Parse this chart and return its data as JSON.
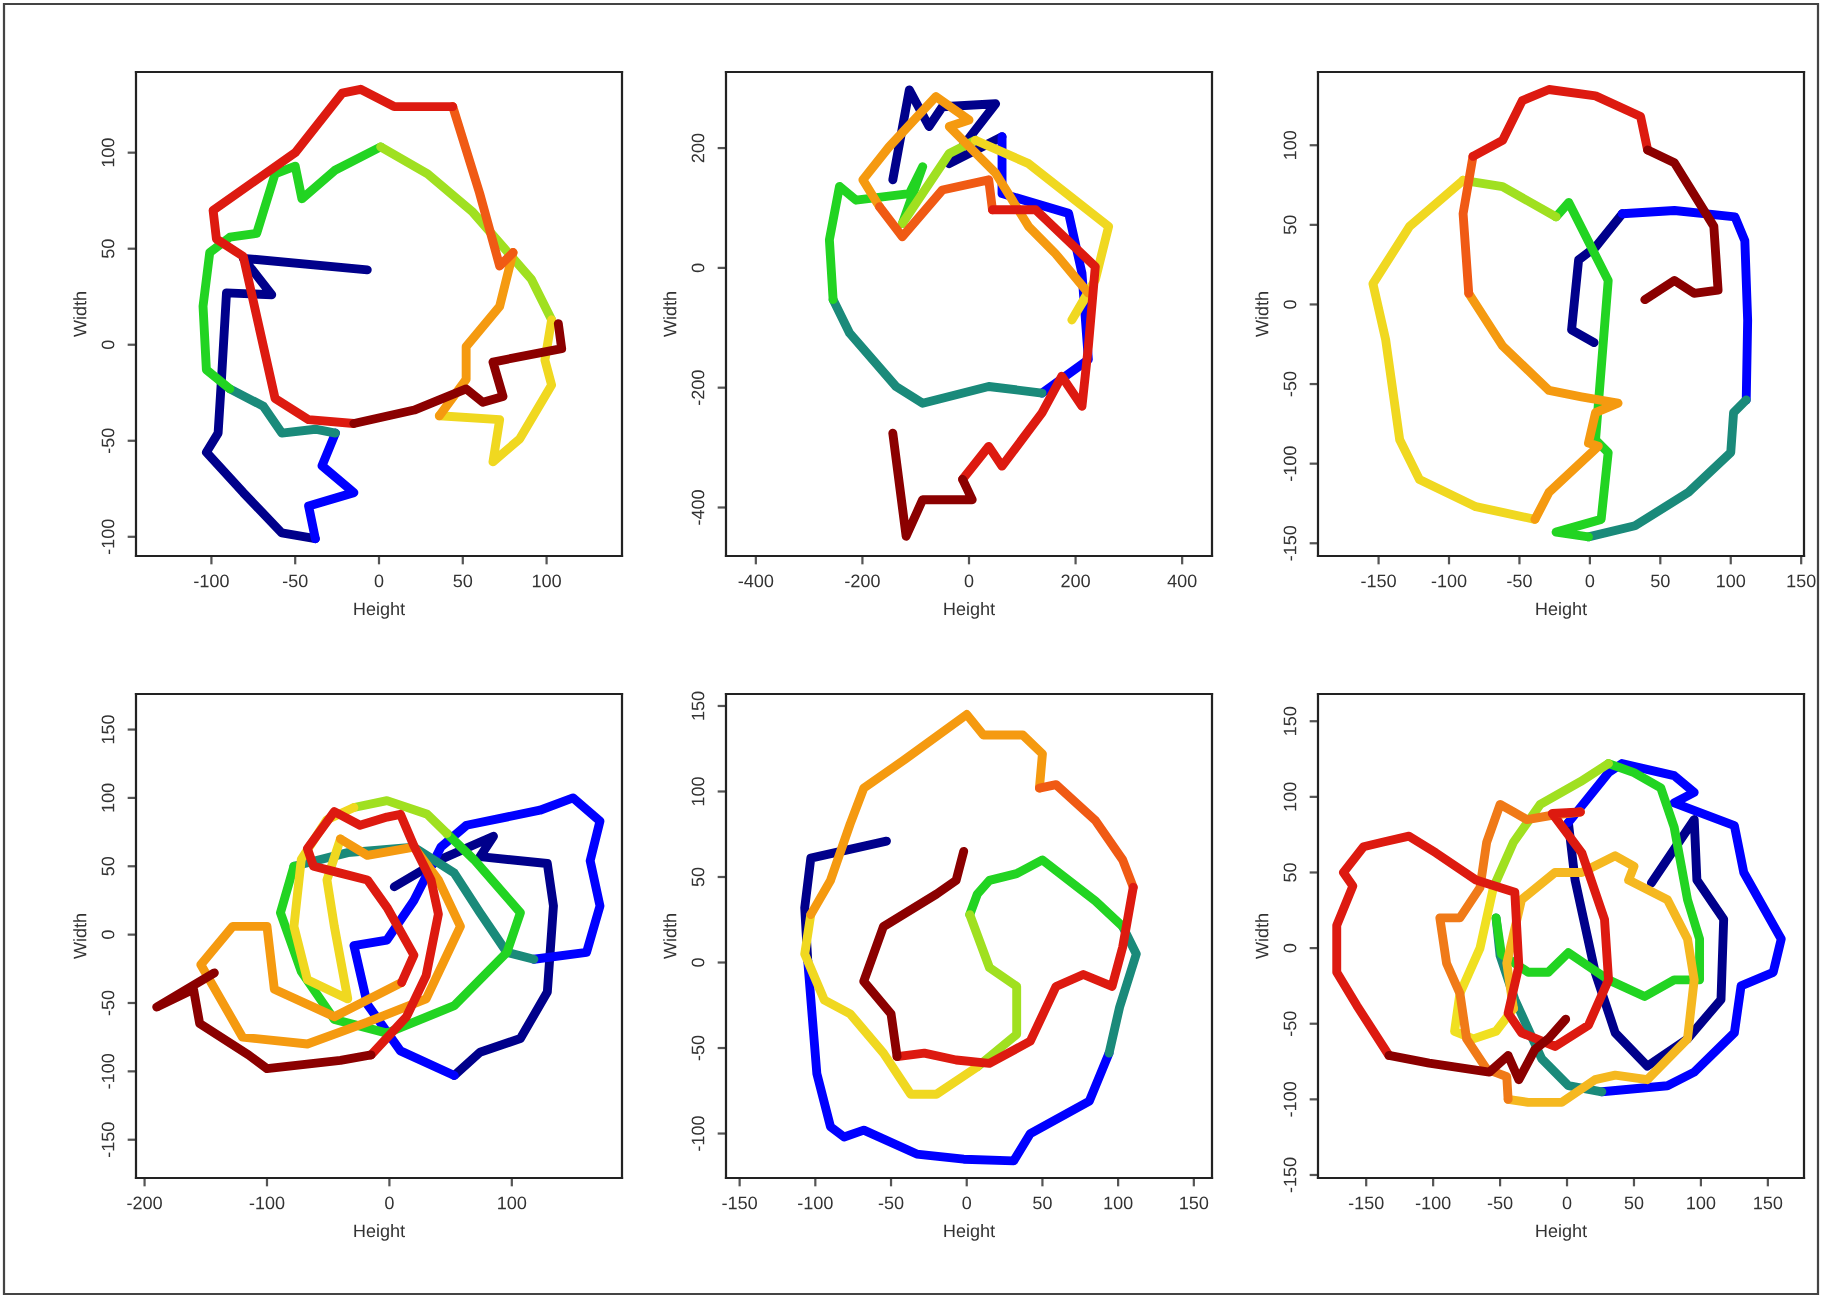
{
  "chart_data": [
    {
      "type": "line",
      "xlabel": "Height",
      "ylabel": "Width",
      "xlim": [
        -145,
        145
      ],
      "ylim": [
        -110,
        142
      ],
      "xticks": [
        -100,
        -50,
        0,
        50,
        100
      ],
      "yticks": [
        -100,
        -50,
        0,
        50,
        100
      ],
      "series": [
        {
          "color": "#00008b",
          "x": [
            -7,
            -81,
            -64,
            -91,
            -94,
            -96,
            -103,
            -81,
            -58,
            -38
          ],
          "values": [
            39,
            45,
            26,
            27,
            -18,
            -46,
            -56,
            -77,
            -98,
            -101
          ]
        },
        {
          "color": "#0000ff",
          "x": [
            -38,
            -42,
            -15,
            -34,
            -26
          ],
          "values": [
            -101,
            -84,
            -77,
            -63,
            -46
          ]
        },
        {
          "color": "#1a8a7a",
          "x": [
            -26,
            -38,
            -58,
            -69,
            -89
          ],
          "values": [
            -46,
            -44,
            -46,
            -32,
            -23
          ]
        },
        {
          "color": "#22d422",
          "x": [
            -89,
            -103,
            -105,
            -101,
            -89,
            -73,
            -62,
            -50,
            -46,
            -26,
            1
          ],
          "values": [
            -23,
            -13,
            20,
            48,
            56,
            58,
            89,
            93,
            76,
            91,
            103
          ]
        },
        {
          "color": "#a0e020",
          "x": [
            1,
            29,
            56,
            91,
            103
          ],
          "values": [
            103,
            89,
            69,
            34,
            13
          ]
        },
        {
          "color": "#f0d820",
          "x": [
            103,
            99,
            103,
            84,
            68,
            72,
            36
          ],
          "values": [
            13,
            -8,
            -21,
            -49,
            -61,
            -39,
            -37
          ]
        },
        {
          "color": "#f59a10",
          "x": [
            36,
            52,
            52,
            72,
            80
          ],
          "values": [
            -37,
            -18,
            -1,
            20,
            48
          ]
        },
        {
          "color": "#f05a14",
          "x": [
            80,
            72,
            60,
            44
          ],
          "values": [
            48,
            41,
            79,
            124
          ]
        },
        {
          "color": "#dd1a10",
          "x": [
            44,
            9,
            -11,
            -22,
            -50,
            -99,
            -97,
            -81,
            -62,
            -42,
            -15
          ],
          "values": [
            124,
            124,
            133,
            131,
            100,
            70,
            55,
            46,
            -28,
            -39,
            -41
          ]
        },
        {
          "color": "#8b0000",
          "x": [
            -15,
            21,
            52,
            62,
            74,
            68,
            109,
            107
          ],
          "values": [
            -41,
            -34,
            -23,
            -30,
            -27,
            -9,
            -2,
            11
          ]
        }
      ]
    },
    {
      "type": "line",
      "xlabel": "Height",
      "ylabel": "Width",
      "xlim": [
        -456,
        456
      ],
      "ylim": [
        -481,
        327
      ],
      "xticks": [
        -400,
        -200,
        0,
        200,
        400
      ],
      "yticks": [
        -400,
        -200,
        0,
        200
      ],
      "series": [
        {
          "color": "#00008b",
          "x": [
            -143,
            -112,
            -75,
            -50,
            50,
            -37,
            62
          ],
          "values": [
            147,
            297,
            236,
            269,
            274,
            174,
            219
          ]
        },
        {
          "color": "#0000ff",
          "x": [
            62,
            62,
            187,
            212,
            224,
            137
          ],
          "values": [
            219,
            124,
            91,
            -9,
            -153,
            -209
          ]
        },
        {
          "color": "#1a8a7a",
          "x": [
            137,
            37,
            -87,
            -137,
            -224,
            -255
          ],
          "values": [
            -209,
            -198,
            -226,
            -198,
            -109,
            -53
          ]
        },
        {
          "color": "#22d422",
          "x": [
            -255,
            -262,
            -243,
            -212,
            -112,
            -87,
            -125
          ],
          "values": [
            -53,
            47,
            136,
            113,
            124,
            169,
            74
          ]
        },
        {
          "color": "#a0e020",
          "x": [
            -125,
            -37,
            12
          ],
          "values": [
            74,
            191,
            213
          ]
        },
        {
          "color": "#f0d820",
          "x": [
            12,
            112,
            262,
            237,
            193,
            224
          ],
          "values": [
            213,
            174,
            69,
            -20,
            -87,
            -42
          ]
        },
        {
          "color": "#f59a10",
          "x": [
            224,
            162,
            112,
            50,
            -37,
            0,
            -62,
            -150,
            -199,
            -168
          ],
          "values": [
            -42,
            24,
            69,
            158,
            236,
            247,
            286,
            202,
            147,
            102
          ]
        },
        {
          "color": "#f05a14",
          "x": [
            -168,
            -125,
            -50,
            37,
            44
          ],
          "values": [
            102,
            52,
            130,
            147,
            97
          ]
        },
        {
          "color": "#dd1a10",
          "x": [
            44,
            125,
            237,
            224,
            212,
            174,
            137,
            62,
            37,
            -12
          ],
          "values": [
            97,
            97,
            2,
            -131,
            -231,
            -181,
            -242,
            -331,
            -298,
            -353
          ]
        },
        {
          "color": "#8b0000",
          "x": [
            -12,
            6,
            -87,
            -118,
            -143
          ],
          "values": [
            -353,
            -387,
            -387,
            -448,
            -276
          ]
        }
      ]
    },
    {
      "type": "line",
      "xlabel": "Height",
      "ylabel": "Width",
      "xlim": [
        -193,
        152
      ],
      "ylim": [
        -158,
        146
      ],
      "xticks": [
        -150,
        -100,
        -50,
        0,
        50,
        100,
        150
      ],
      "yticks": [
        -150,
        -100,
        -50,
        0,
        50,
        100
      ],
      "series": [
        {
          "color": "#00008b",
          "x": [
            3,
            -13,
            -8,
            4,
            23
          ],
          "values": [
            -24,
            -16,
            28,
            36,
            57
          ]
        },
        {
          "color": "#0000ff",
          "x": [
            23,
            60,
            103,
            110,
            112,
            111
          ],
          "values": [
            57,
            59,
            55,
            40,
            -10,
            -60
          ]
        },
        {
          "color": "#1a8a7a",
          "x": [
            111,
            102,
            100,
            70,
            32,
            -1
          ],
          "values": [
            -60,
            -68,
            -93,
            -118,
            -139,
            -146
          ]
        },
        {
          "color": "#22d422",
          "x": [
            -1,
            -24,
            8,
            13,
            4,
            13,
            -15,
            -24
          ],
          "values": [
            -146,
            -143,
            -135,
            -93,
            -85,
            15,
            64,
            55
          ]
        },
        {
          "color": "#a0e020",
          "x": [
            -24,
            -62,
            -90
          ],
          "values": [
            55,
            74,
            78
          ]
        },
        {
          "color": "#f0d820",
          "x": [
            -90,
            -128,
            -154,
            -145,
            -135,
            -121,
            -81,
            -39
          ],
          "values": [
            78,
            49,
            13,
            -22,
            -85,
            -110,
            -127,
            -135
          ]
        },
        {
          "color": "#f59a10",
          "x": [
            -39,
            -29,
            6,
            -1,
            4,
            20,
            -6,
            -29,
            -62,
            -86
          ],
          "values": [
            -135,
            -118,
            -89,
            -87,
            -68,
            -62,
            -58,
            -54,
            -26,
            7
          ]
        },
        {
          "color": "#f05a14",
          "x": [
            -86,
            -90,
            -83
          ],
          "values": [
            7,
            57,
            93
          ]
        },
        {
          "color": "#dd1a10",
          "x": [
            -83,
            -62,
            -48,
            -29,
            4,
            36,
            41
          ],
          "values": [
            93,
            103,
            128,
            135,
            131,
            118,
            97
          ]
        },
        {
          "color": "#8b0000",
          "x": [
            41,
            60,
            88,
            91,
            74,
            60,
            39
          ],
          "values": [
            97,
            89,
            49,
            9,
            7,
            15,
            3
          ]
        }
      ]
    },
    {
      "type": "line",
      "xlabel": "Height",
      "ylabel": "Width",
      "xlim": [
        -207,
        190
      ],
      "ylim": [
        -178,
        176
      ],
      "xticks": [
        -200,
        -100,
        0,
        100
      ],
      "yticks": [
        -150,
        -100,
        -50,
        0,
        50,
        100,
        150
      ],
      "series": [
        {
          "color": "#00008b",
          "x": [
            4,
            42,
            85,
            74,
            129,
            134,
            129,
            107,
            74,
            53
          ],
          "values": [
            35,
            55,
            72,
            57,
            52,
            21,
            -42,
            -76,
            -86,
            -103
          ]
        },
        {
          "color": "#0000ff",
          "x": [
            53,
            9,
            -18,
            -29,
            -2,
            20,
            42,
            63,
            123,
            150,
            172,
            164,
            172,
            161,
            118
          ],
          "values": [
            -103,
            -85,
            -51,
            -8,
            -4,
            25,
            64,
            80,
            91,
            100,
            83,
            54,
            21,
            -13,
            -18
          ]
        },
        {
          "color": "#1a8a7a",
          "x": [
            118,
            96,
            74,
            53,
            20,
            -34,
            -78
          ],
          "values": [
            -18,
            -13,
            16,
            45,
            64,
            60,
            50
          ]
        },
        {
          "color": "#22d422",
          "x": [
            -78,
            -89,
            -72,
            -45,
            -2,
            53,
            96,
            107,
            69,
            47
          ],
          "values": [
            50,
            16,
            -27,
            -62,
            -72,
            -52,
            -13,
            16,
            55,
            74
          ]
        },
        {
          "color": "#a0e020",
          "x": [
            47,
            31,
            -2,
            -29
          ],
          "values": [
            74,
            88,
            98,
            93
          ]
        },
        {
          "color": "#f0d820",
          "x": [
            -29,
            -51,
            -72,
            -78,
            -67,
            -34,
            -45,
            -51,
            -40
          ],
          "values": [
            93,
            84,
            55,
            6,
            -33,
            -47,
            6,
            40,
            70
          ]
        },
        {
          "color": "#f59a10",
          "x": [
            -40,
            -18,
            20,
            40,
            58,
            30,
            -18,
            -67,
            -120,
            -154,
            -128,
            -100,
            -94,
            -45,
            10
          ],
          "values": [
            70,
            58,
            64,
            40,
            6,
            -47,
            -64,
            -80,
            -75,
            -22,
            6,
            6,
            -40,
            -60,
            -35
          ]
        },
        {
          "color": "#dd1a10",
          "x": [
            10,
            20,
            -2,
            -18,
            -40,
            -62,
            -67,
            -45,
            -24,
            -2,
            9,
            20,
            34,
            40,
            30,
            14,
            -15
          ],
          "values": [
            -35,
            -15,
            20,
            40,
            45,
            50,
            63,
            90,
            80,
            86,
            88,
            65,
            40,
            15,
            -30,
            -60,
            -88
          ]
        },
        {
          "color": "#8b0000",
          "x": [
            -15,
            -40,
            -100,
            -115,
            -155,
            -160,
            -190,
            -143
          ],
          "values": [
            -88,
            -92,
            -98,
            -88,
            -65,
            -40,
            -53,
            -28
          ]
        }
      ]
    },
    {
      "type": "line",
      "xlabel": "Height",
      "ylabel": "Width",
      "xlim": [
        -159,
        162
      ],
      "ylim": [
        -126,
        157
      ],
      "xticks": [
        -150,
        -100,
        -50,
        0,
        50,
        100,
        150
      ],
      "yticks": [
        -100,
        -50,
        0,
        50,
        100,
        150
      ],
      "series": [
        {
          "color": "#00008b",
          "x": [
            -53,
            -103,
            -107,
            -105
          ],
          "values": [
            71,
            61,
            32,
            1
          ]
        },
        {
          "color": "#0000ff",
          "x": [
            -105,
            -99,
            -90,
            -81,
            -68,
            -33,
            -2,
            31,
            42,
            81,
            94
          ],
          "values": [
            1,
            -65,
            -96,
            -102,
            -98,
            -112,
            -115,
            -116,
            -100,
            -81,
            -53
          ]
        },
        {
          "color": "#1a8a7a",
          "x": [
            94,
            101,
            112,
            103
          ],
          "values": [
            -53,
            -26,
            5,
            21
          ]
        },
        {
          "color": "#22d422",
          "x": [
            103,
            85,
            50,
            33,
            15,
            7,
            2
          ],
          "values": [
            21,
            36,
            60,
            52,
            48,
            40,
            28
          ]
        },
        {
          "color": "#a0e020",
          "x": [
            2,
            15,
            33,
            33,
            7
          ],
          "values": [
            28,
            -3,
            -14,
            -42,
            -61
          ]
        },
        {
          "color": "#f0d820",
          "x": [
            7,
            -20,
            -37,
            -55,
            -77,
            -94,
            -107,
            -103
          ],
          "values": [
            -61,
            -77,
            -77,
            -53,
            -30,
            -22,
            5,
            28
          ]
        },
        {
          "color": "#f59a10",
          "x": [
            -103,
            -90,
            -77,
            -68,
            -42,
            0,
            11,
            37,
            50,
            48
          ],
          "values": [
            28,
            48,
            81,
            102,
            118,
            145,
            133,
            133,
            122,
            102
          ]
        },
        {
          "color": "#f05a14",
          "x": [
            48,
            59,
            85,
            103,
            110
          ],
          "values": [
            102,
            104,
            83,
            60,
            44
          ]
        },
        {
          "color": "#dd1a10",
          "x": [
            110,
            103,
            96,
            77,
            59,
            42,
            15,
            -7,
            -28,
            -46
          ],
          "values": [
            44,
            9,
            -14,
            -7,
            -14,
            -46,
            -59,
            -57,
            -53,
            -55
          ]
        },
        {
          "color": "#8b0000",
          "x": [
            -46,
            -50,
            -68,
            -55,
            -20,
            -7,
            -2
          ],
          "values": [
            -55,
            -30,
            -11,
            21,
            40,
            48,
            65
          ]
        }
      ]
    },
    {
      "type": "line",
      "xlabel": "Height",
      "ylabel": "Width",
      "xlim": [
        -186,
        177
      ],
      "ylim": [
        -152,
        168
      ],
      "xticks": [
        -150,
        -100,
        -50,
        0,
        50,
        100,
        150
      ],
      "yticks": [
        -150,
        -100,
        -50,
        0,
        50,
        100,
        150
      ],
      "series": [
        {
          "color": "#00008b",
          "x": [
            63,
            95,
            97,
            117,
            115,
            90,
            60,
            36,
            21,
            6,
            1
          ],
          "values": [
            43,
            85,
            45,
            19,
            -34,
            -60,
            -78,
            -56,
            -16,
            45,
            83
          ]
        },
        {
          "color": "#0000ff",
          "x": [
            1,
            31,
            41,
            80,
            95,
            80,
            125,
            132,
            160,
            154,
            130,
            125,
            95,
            75,
            26
          ],
          "values": [
            83,
            116,
            122,
            114,
            103,
            96,
            81,
            50,
            6,
            -16,
            -25,
            -56,
            -82,
            -91,
            -95
          ]
        },
        {
          "color": "#1a8a7a",
          "x": [
            26,
            1,
            -19,
            -39,
            -50,
            -53
          ],
          "values": [
            -95,
            -91,
            -73,
            -34,
            -5,
            20
          ]
        },
        {
          "color": "#22d422",
          "x": [
            -53,
            -49,
            -29,
            -14,
            1,
            31,
            58,
            80,
            99,
            99,
            90,
            80,
            70,
            50,
            31
          ],
          "values": [
            20,
            -4,
            -16,
            -16,
            -3,
            -21,
            -32,
            -21,
            -21,
            6,
            32,
            80,
            106,
            116,
            122
          ]
        },
        {
          "color": "#a0e020",
          "x": [
            31,
            10,
            -20,
            -40,
            -55
          ],
          "values": [
            122,
            110,
            95,
            70,
            40
          ]
        },
        {
          "color": "#f0e020",
          "x": [
            -55,
            -65,
            -80,
            -84,
            -70,
            -53,
            -40
          ],
          "values": [
            40,
            0,
            -30,
            -55,
            -60,
            -55,
            -40
          ]
        },
        {
          "color": "#f5b820",
          "x": [
            -40,
            -45,
            -34,
            -9,
            11,
            36,
            50,
            46,
            75,
            90,
            95,
            90,
            60,
            36,
            21,
            -4,
            -29,
            -44
          ],
          "values": [
            -40,
            -10,
            32,
            50,
            50,
            61,
            54,
            45,
            32,
            6,
            -21,
            -60,
            -87,
            -84,
            -87,
            -102,
            -102,
            -100
          ]
        },
        {
          "color": "#f07a18",
          "x": [
            -44,
            -45,
            -60,
            -75,
            -80,
            -90,
            -95,
            -80,
            -65,
            -60,
            -50,
            -40,
            -30,
            -10,
            10
          ],
          "values": [
            -100,
            -85,
            -80,
            -60,
            -30,
            -10,
            20,
            20,
            40,
            70,
            95,
            90,
            85,
            88,
            90
          ]
        },
        {
          "color": "#dd1a10",
          "x": [
            10,
            -11,
            11,
            28,
            31,
            16,
            -9,
            -34,
            -44,
            -36,
            -39,
            -68,
            -98,
            -118,
            -138,
            -152,
            -167,
            -160,
            -172,
            -172,
            -157,
            -133
          ],
          "values": [
            90,
            89,
            63,
            19,
            -21,
            -51,
            -65,
            -56,
            -43,
            -12,
            37,
            45,
            63,
            74,
            70,
            67,
            50,
            41,
            15,
            -16,
            -38,
            -71
          ]
        },
        {
          "color": "#8b0000",
          "x": [
            -133,
            -103,
            -58,
            -44,
            -36,
            -24,
            -14,
            -1
          ],
          "values": [
            -71,
            -76,
            -82,
            -71,
            -87,
            -67,
            -60,
            -47
          ]
        }
      ]
    }
  ]
}
